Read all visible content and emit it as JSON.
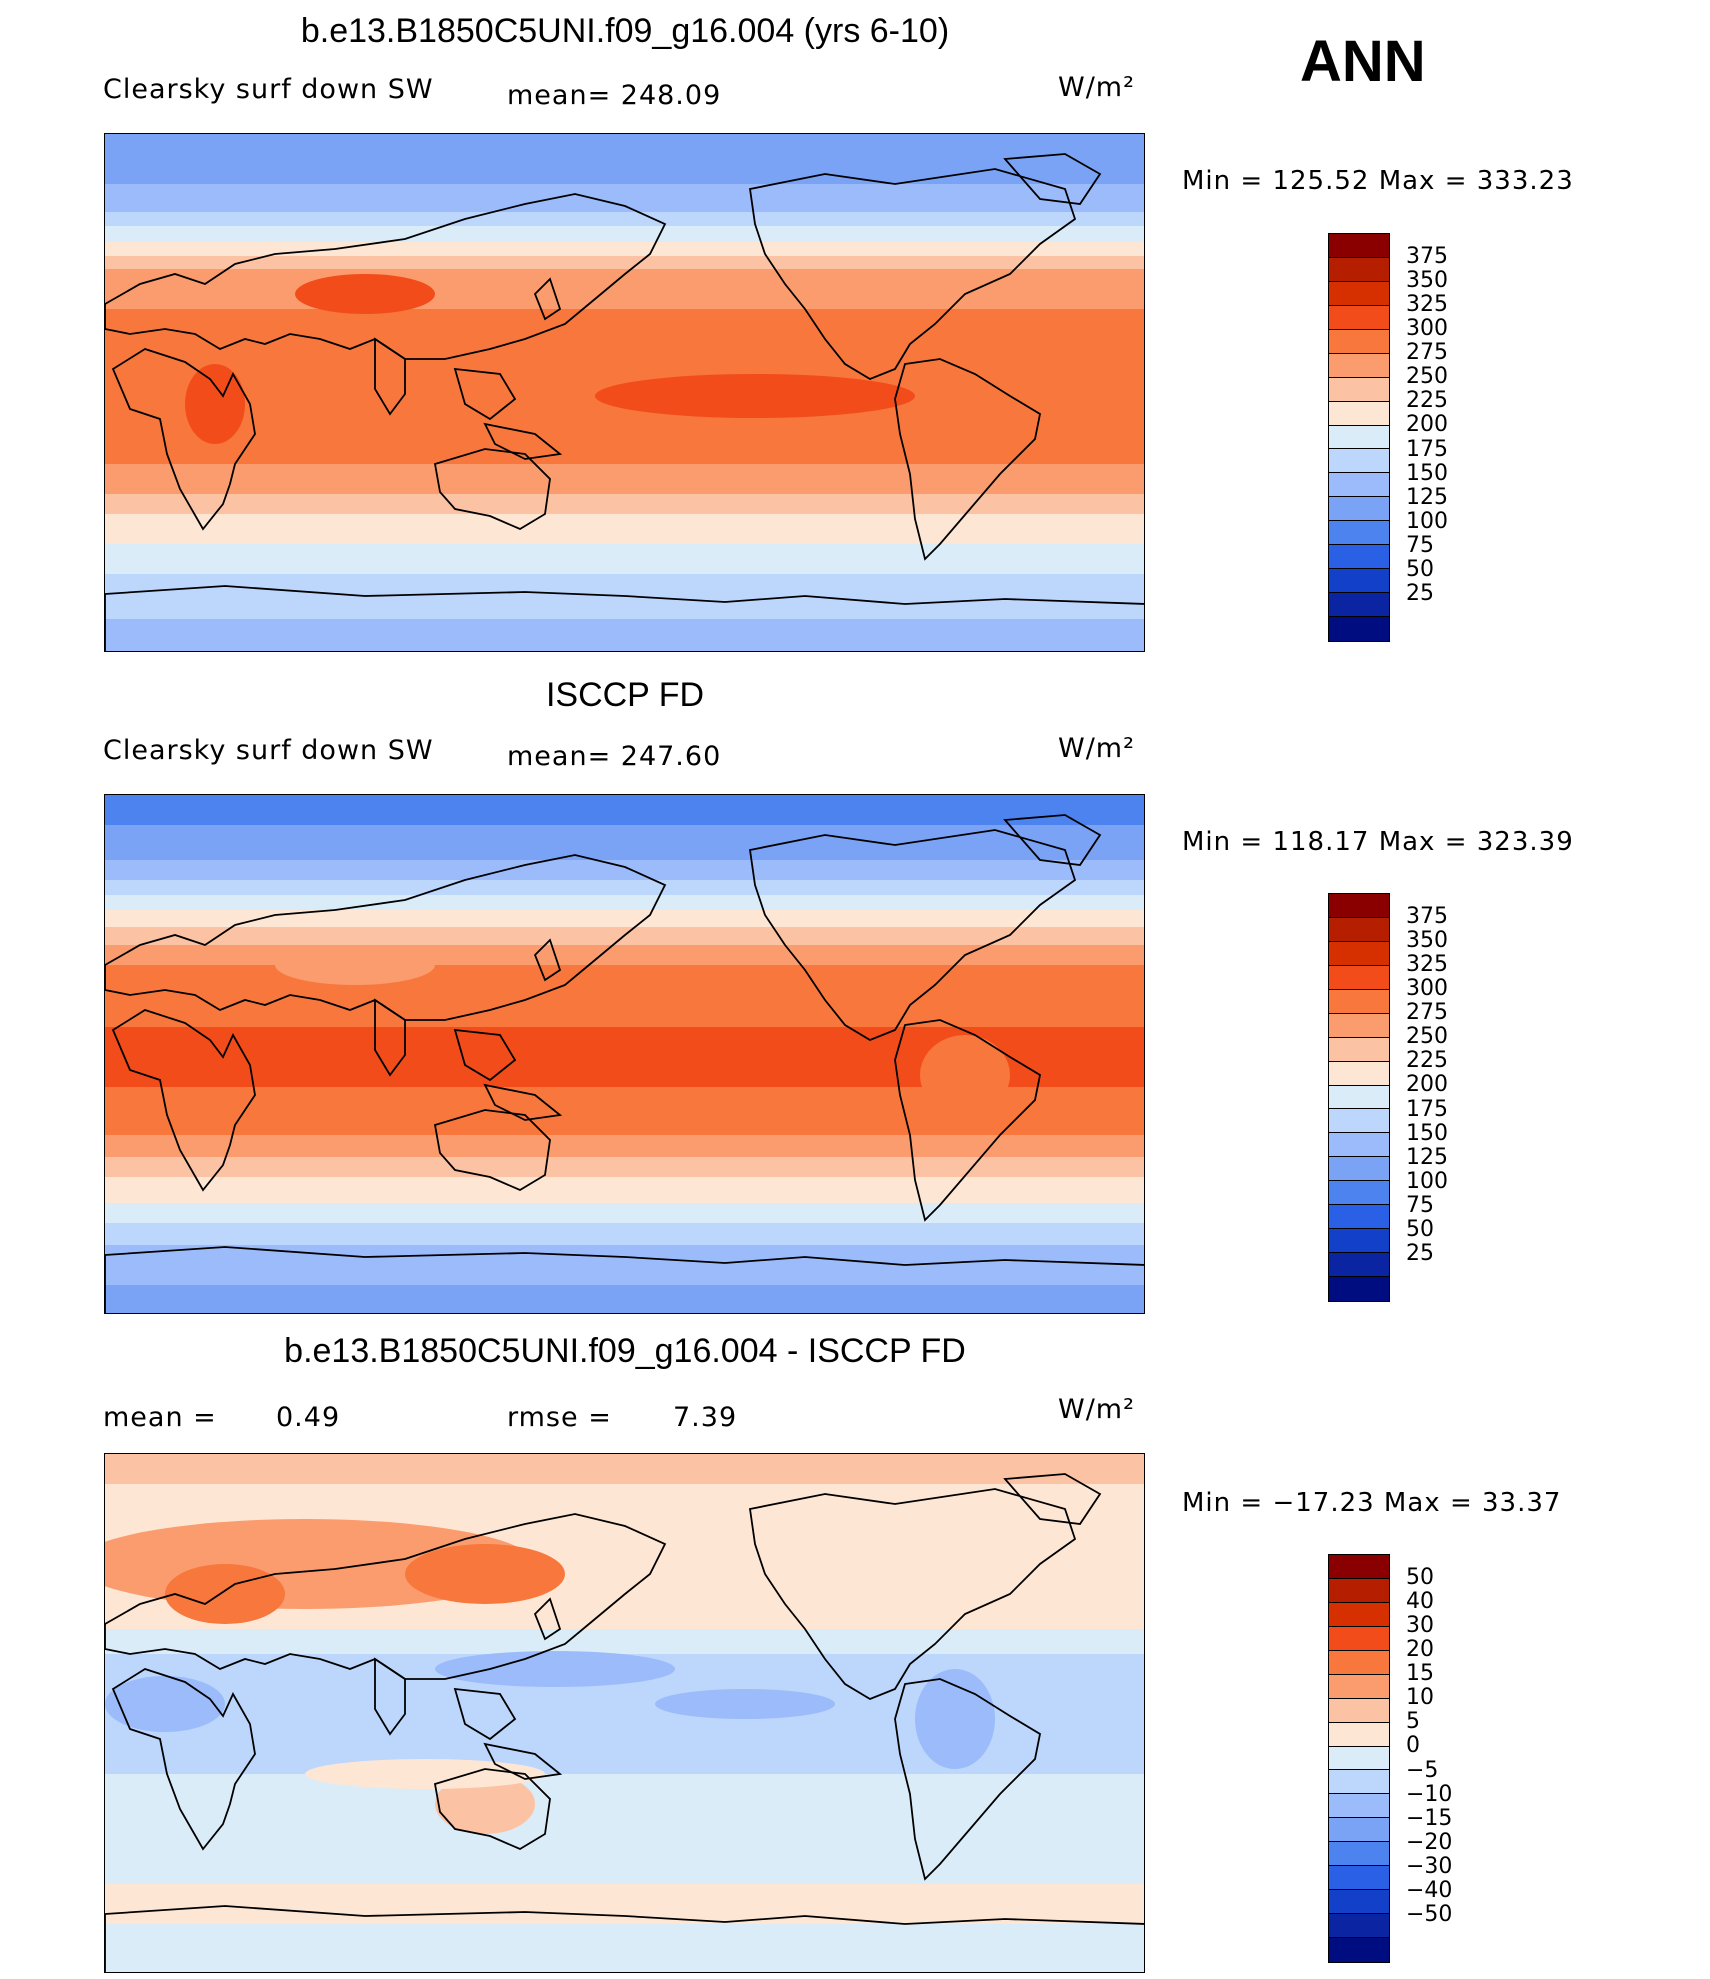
{
  "season": "ANN",
  "panels": [
    {
      "title": "b.e13.B1850C5UNI.f09_g16.004 (yrs 6-10)",
      "variable_label": "Clearsky surf down SW",
      "stat_label": "mean= 248.09",
      "units": "W/m²",
      "min_max_text": "Min  =  125.52  Max  =  333.23",
      "map_type": "model",
      "colorbar": {
        "labels": [
          "375",
          "350",
          "325",
          "300",
          "275",
          "250",
          "225",
          "200",
          "175",
          "150",
          "125",
          "100",
          "75",
          "50",
          "25"
        ],
        "colors": [
          "#8a0000",
          "#b51f00",
          "#d62f00",
          "#f24c1a",
          "#f8773c",
          "#fa9c6e",
          "#fcc2a4",
          "#fde6d4",
          "#dbecf9",
          "#bcd6fc",
          "#9bbbfa",
          "#7aa2f5",
          "#4d83ef",
          "#2a60e6",
          "#1340c9",
          "#0a24a2",
          "#000d80"
        ]
      }
    },
    {
      "title": "ISCCP FD",
      "variable_label": "Clearsky surf down SW",
      "stat_label": "mean= 247.60",
      "units": "W/m²",
      "min_max_text": "Min  =  118.17  Max  =  323.39",
      "map_type": "obs",
      "colorbar": {
        "labels": [
          "375",
          "350",
          "325",
          "300",
          "275",
          "250",
          "225",
          "200",
          "175",
          "150",
          "125",
          "100",
          "75",
          "50",
          "25"
        ],
        "colors": [
          "#8a0000",
          "#b51f00",
          "#d62f00",
          "#f24c1a",
          "#f8773c",
          "#fa9c6e",
          "#fcc2a4",
          "#fde6d4",
          "#dbecf9",
          "#bcd6fc",
          "#9bbbfa",
          "#7aa2f5",
          "#4d83ef",
          "#2a60e6",
          "#1340c9",
          "#0a24a2",
          "#000d80"
        ]
      }
    },
    {
      "title": "b.e13.B1850C5UNI.f09_g16.004 - ISCCP FD",
      "mean_label": "mean =",
      "mean_value": "0.49",
      "rmse_label": "rmse =",
      "rmse_value": "7.39",
      "units": "W/m²",
      "min_max_text": "Min  =  −17.23  Max  =    33.37",
      "map_type": "diff",
      "colorbar": {
        "labels": [
          "50",
          "40",
          "30",
          "20",
          "15",
          "10",
          "5",
          "0",
          "−5",
          "−10",
          "−15",
          "−20",
          "−30",
          "−40",
          "−50"
        ],
        "colors": [
          "#8a0000",
          "#b51f00",
          "#d62f00",
          "#f24c1a",
          "#f8773c",
          "#fa9c6e",
          "#fcc2a4",
          "#fde6d4",
          "#dbecf9",
          "#bcd6fc",
          "#9bbbfa",
          "#7aa2f5",
          "#4d83ef",
          "#2a60e6",
          "#1340c9",
          "#0a24a2",
          "#000d80"
        ]
      }
    }
  ]
}
